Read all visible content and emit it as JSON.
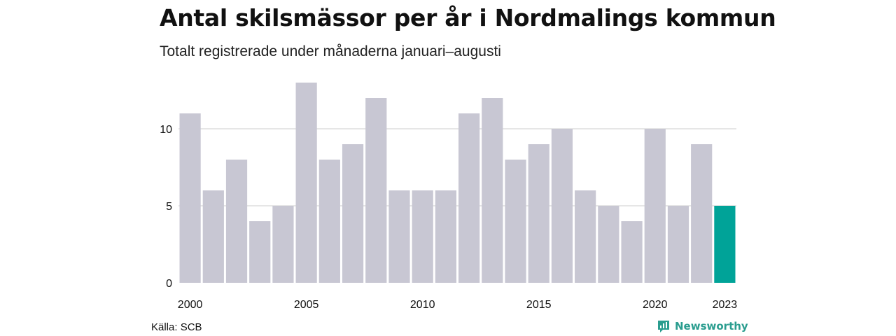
{
  "chart_data": {
    "type": "bar",
    "title": "Antal skilsmässor per år i Nordmalings kommun",
    "subtitle": "Totalt registrerade under månaderna januari–augusti",
    "categories": [
      "2000",
      "2001",
      "2002",
      "2003",
      "2004",
      "2005",
      "2006",
      "2007",
      "2008",
      "2009",
      "2010",
      "2011",
      "2012",
      "2013",
      "2014",
      "2015",
      "2016",
      "2017",
      "2018",
      "2019",
      "2020",
      "2021",
      "2022",
      "2023"
    ],
    "values": [
      11,
      6,
      8,
      4,
      5,
      13,
      8,
      9,
      12,
      6,
      6,
      6,
      11,
      12,
      8,
      9,
      10,
      6,
      5,
      4,
      10,
      5,
      9,
      5
    ],
    "x_tick_labels": [
      "2000",
      "2005",
      "2010",
      "2015",
      "2020",
      "2023"
    ],
    "y_ticks": [
      0,
      5,
      10
    ],
    "ylim": [
      0,
      13
    ],
    "grid": true,
    "colors": {
      "bar": "#c8c7d3",
      "highlight": "#00a398",
      "gridline": "#dddddd"
    },
    "highlight_category": "2023"
  },
  "footer": {
    "source": "Källa: SCB",
    "brand": "Newsworthy",
    "brand_icon": "newsworthy-logo-icon"
  }
}
